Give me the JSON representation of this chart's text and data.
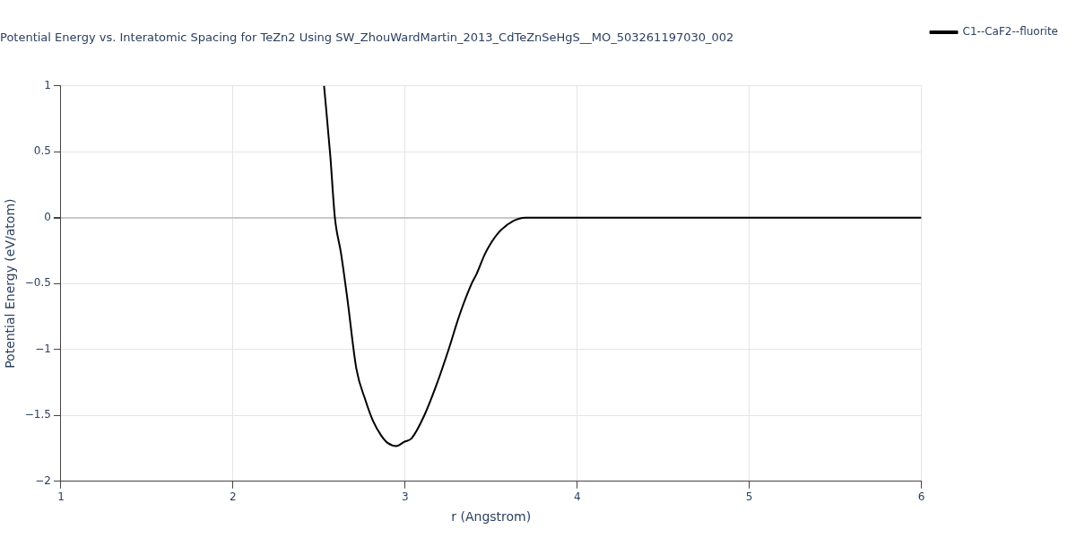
{
  "chart_data": {
    "type": "line",
    "title": "Potential Energy vs. Interatomic Spacing for TeZn2 Using SW_ZhouWardMartin_2013_CdTeZnSeHgS__MO_503261197030_002",
    "xlabel": "r (Angstrom)",
    "ylabel": "Potential Energy (eV/atom)",
    "series": [
      {
        "name": "C1--CaF2--fluorite",
        "color": "#000000",
        "x": [
          2.529,
          2.565,
          2.592,
          2.627,
          2.663,
          2.717,
          2.77,
          2.813,
          2.86,
          2.9,
          2.949,
          2.996,
          3.039,
          3.11,
          3.182,
          3.253,
          3.316,
          3.387,
          3.414,
          3.468,
          3.539,
          3.629,
          3.7,
          4,
          5,
          6
        ],
        "values": [
          1,
          0.475,
          0,
          -0.265,
          -0.6,
          -1.147,
          -1.386,
          -1.54,
          -1.65,
          -1.71,
          -1.732,
          -1.7,
          -1.672,
          -1.505,
          -1.27,
          -1.0,
          -0.74,
          -0.5,
          -0.432,
          -0.265,
          -0.12,
          -0.026,
          0,
          0,
          0,
          0
        ]
      }
    ],
    "xlim": [
      1,
      6
    ],
    "xticks": [
      1,
      2,
      3,
      4,
      5,
      6
    ],
    "ylim": [
      -2,
      1
    ],
    "yticks": [
      {
        "value": -2,
        "label": "−2"
      },
      {
        "value": -1.5,
        "label": "−1.5"
      },
      {
        "value": -1,
        "label": "−1"
      },
      {
        "value": -0.5,
        "label": "−0.5"
      },
      0,
      0.5,
      1
    ],
    "grid": true,
    "legend": "top right",
    "marker": "none",
    "line_style": "solid"
  }
}
